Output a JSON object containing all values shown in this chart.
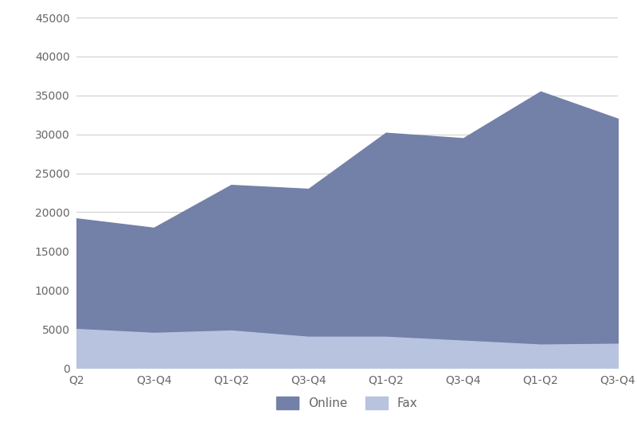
{
  "x_labels": [
    "Q2",
    "Q3-Q4",
    "Q1-Q2",
    "Q3-Q4",
    "Q1-Q2",
    "Q3-Q4",
    "Q1-Q2",
    "Q3-Q4"
  ],
  "online_values": [
    19200,
    18000,
    23500,
    23000,
    30200,
    29500,
    35500,
    32000
  ],
  "fax_values": [
    5000,
    4500,
    4800,
    4000,
    4000,
    3500,
    3000,
    3100
  ],
  "online_color": "#7380a8",
  "fax_color": "#b8c3e0",
  "background_color": "#ffffff",
  "grid_color": "#d0d0d0",
  "ylim": [
    0,
    45000
  ],
  "yticks": [
    0,
    5000,
    10000,
    15000,
    20000,
    25000,
    30000,
    35000,
    40000,
    45000
  ],
  "legend_labels": [
    "Online",
    "Fax"
  ],
  "font_color": "#666666",
  "font_size": 10,
  "legend_font_size": 11
}
